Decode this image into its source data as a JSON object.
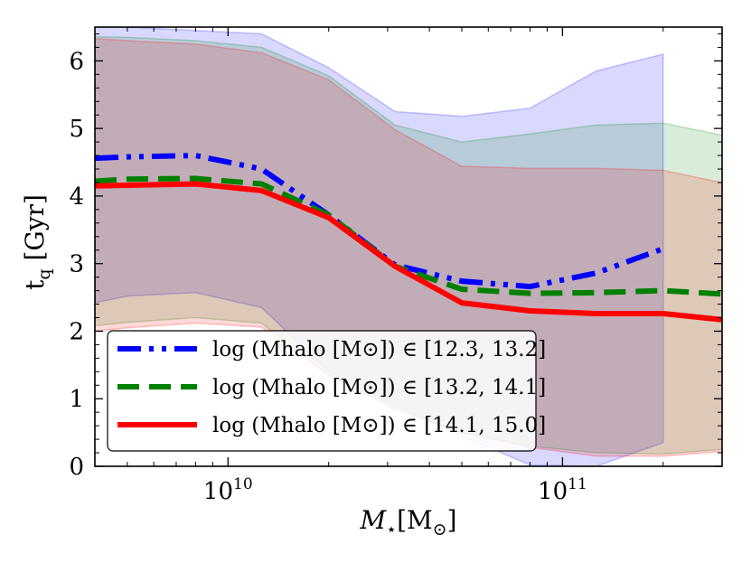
{
  "chart_data": {
    "type": "line",
    "x_scale": "log",
    "xlim": [
      4000000000.0,
      300000000000.0
    ],
    "ylim": [
      0,
      6.5
    ],
    "xlabel": "M⋆[M⊙]",
    "ylabel": "t_q [Gyr]",
    "y_ticks": [
      0,
      1,
      2,
      3,
      4,
      5,
      6
    ],
    "x_ticks": [
      {
        "value": 10000000000.0,
        "base": "10",
        "exp": "10"
      },
      {
        "value": 100000000000.0,
        "base": "10",
        "exp": "11"
      }
    ],
    "legend_position": "lower-left",
    "series": [
      {
        "name": "log(M_halo [M⊙]) ∈ [12.3, 13.2]",
        "legend_label": "log (Mhalo [M⊙]) ∈ [12.3, 13.2]",
        "color": "#0000ff",
        "linestyle": "dashdotdot",
        "x": [
          4000000000.0,
          5000000000.0,
          8000000000.0,
          12600000000.0,
          20000000000.0,
          31600000000.0,
          50000000000.0,
          80000000000.0,
          126000000000.0,
          200000000000.0
        ],
        "y": [
          4.56,
          4.58,
          4.6,
          4.4,
          3.72,
          2.98,
          2.74,
          2.66,
          2.86,
          3.22
        ],
        "upper": [
          6.5,
          6.5,
          6.45,
          6.4,
          5.9,
          5.25,
          5.18,
          5.3,
          5.85,
          6.1
        ],
        "lower": [
          2.42,
          2.52,
          2.57,
          2.35,
          1.4,
          0.9,
          0.45,
          0.02,
          0.0,
          0.35
        ]
      },
      {
        "name": "log(M_halo [M⊙]) ∈ [13.2, 14.1]",
        "legend_label": "log (Mhalo [M⊙]) ∈ [13.2, 14.1]",
        "color": "#008000",
        "linestyle": "dashed",
        "x": [
          4000000000.0,
          5000000000.0,
          8000000000.0,
          12600000000.0,
          20000000000.0,
          31600000000.0,
          50000000000.0,
          80000000000.0,
          126000000000.0,
          200000000000.0,
          300000000000.0
        ],
        "y": [
          4.22,
          4.25,
          4.26,
          4.18,
          3.72,
          2.96,
          2.62,
          2.56,
          2.57,
          2.6,
          2.55
        ],
        "upper": [
          6.36,
          6.35,
          6.3,
          6.2,
          5.78,
          5.05,
          4.8,
          4.92,
          5.05,
          5.08,
          4.9
        ],
        "lower": [
          2.08,
          2.13,
          2.2,
          2.12,
          1.35,
          0.85,
          0.5,
          0.3,
          0.2,
          0.18,
          0.25
        ]
      },
      {
        "name": "log(M_halo [M⊙]) ∈ [14.1, 15.0]",
        "legend_label": "log (Mhalo [M⊙]) ∈ [14.1, 15.0]",
        "color": "#ff0000",
        "linestyle": "solid",
        "x": [
          4000000000.0,
          5000000000.0,
          8000000000.0,
          12600000000.0,
          20000000000.0,
          31600000000.0,
          50000000000.0,
          80000000000.0,
          126000000000.0,
          200000000000.0,
          300000000000.0
        ],
        "y": [
          4.15,
          4.16,
          4.18,
          4.08,
          3.68,
          2.96,
          2.42,
          2.3,
          2.26,
          2.26,
          2.17
        ],
        "upper": [
          6.33,
          6.3,
          6.25,
          6.12,
          5.72,
          4.98,
          4.44,
          4.41,
          4.41,
          4.38,
          4.2
        ],
        "lower": [
          2.0,
          2.05,
          2.12,
          2.06,
          1.35,
          0.85,
          0.5,
          0.28,
          0.15,
          0.15,
          0.22
        ]
      }
    ]
  }
}
